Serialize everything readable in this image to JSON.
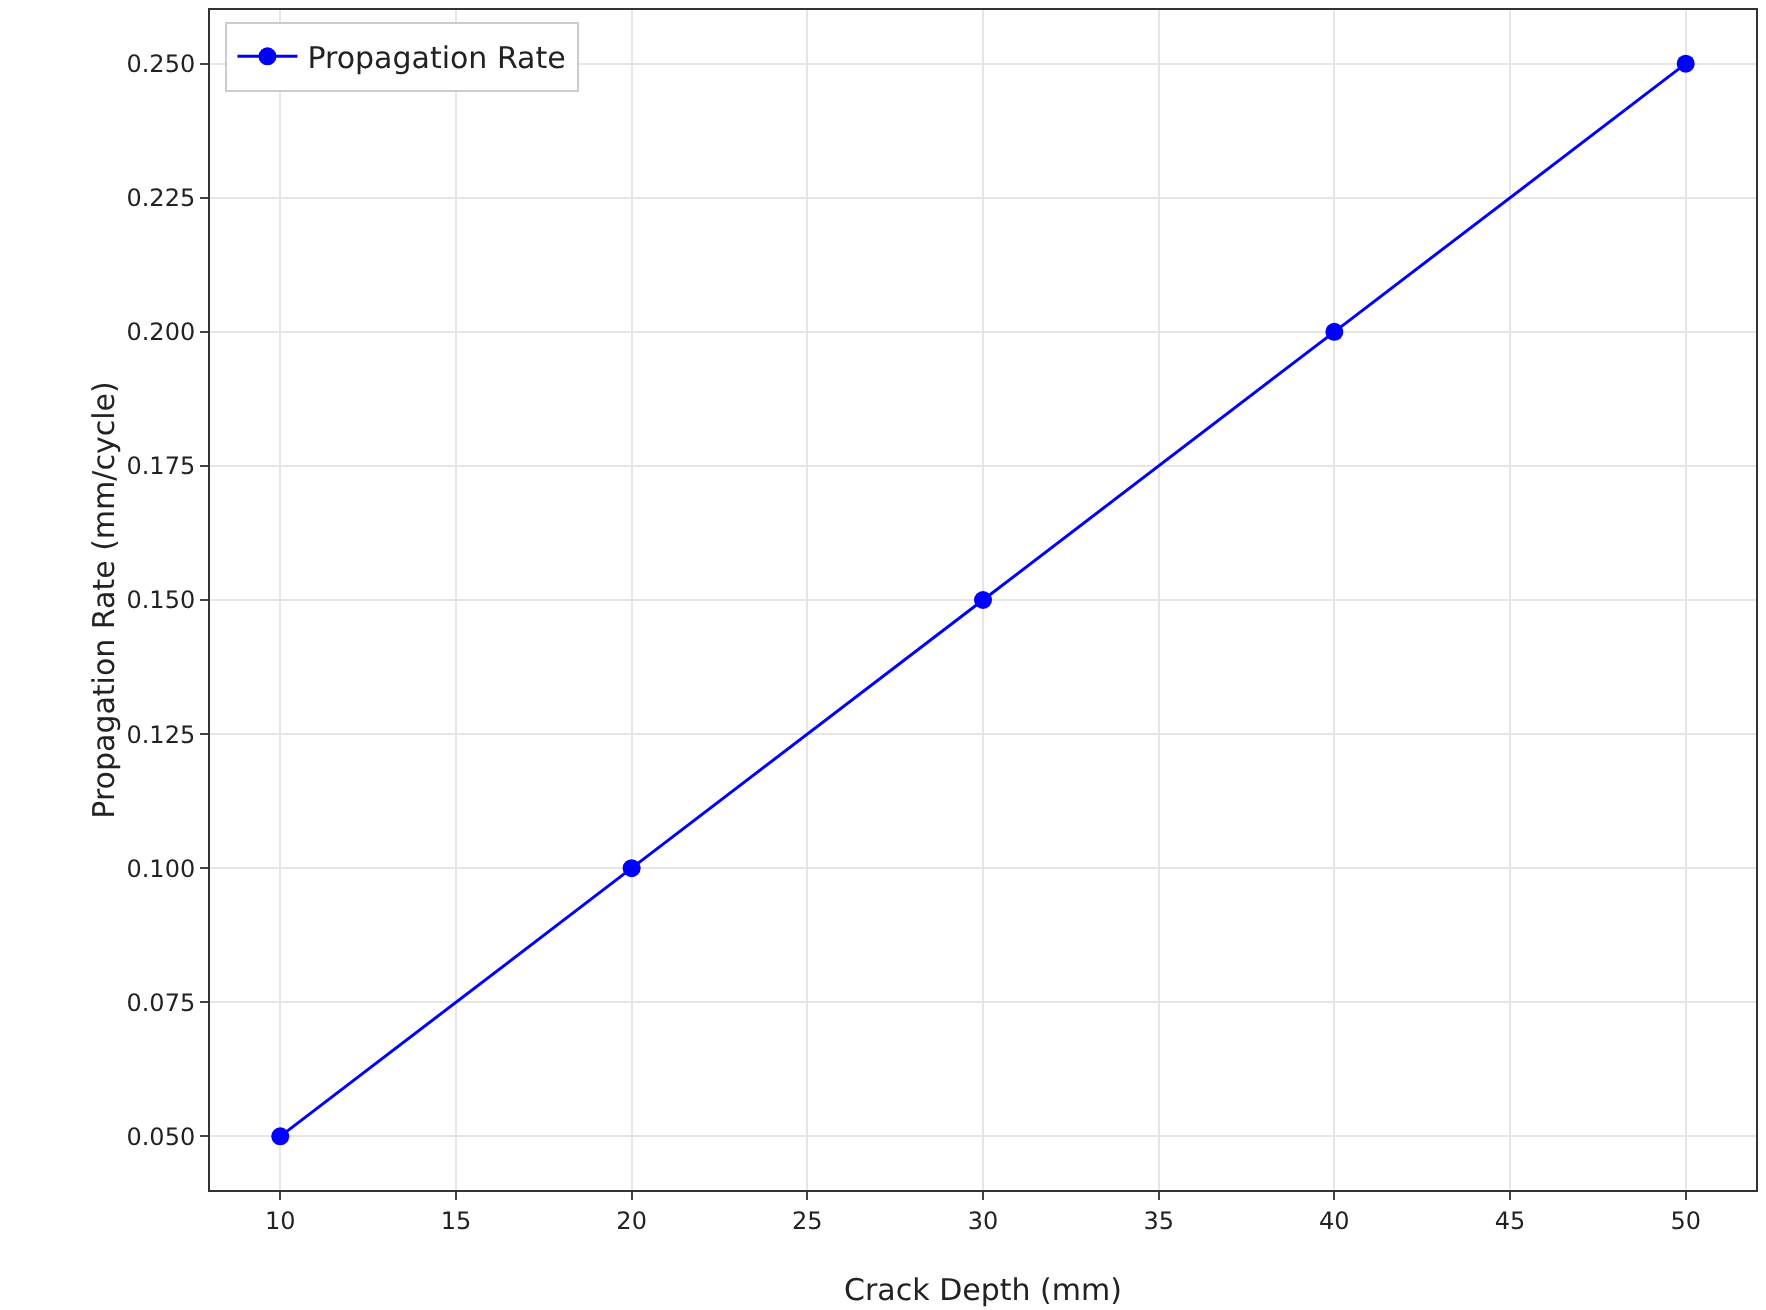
{
  "chart_data": {
    "type": "line",
    "xlabel": "Crack Depth (mm)",
    "ylabel": "Propagation Rate (mm/cycle)",
    "x": [
      10,
      20,
      30,
      40,
      50
    ],
    "series": [
      {
        "name": "Propagation Rate",
        "color": "#0000ff",
        "values": [
          0.05,
          0.1,
          0.15,
          0.2,
          0.25
        ]
      }
    ],
    "xlim": [
      8,
      52
    ],
    "xticks": [
      10,
      15,
      20,
      25,
      30,
      35,
      40,
      45,
      50
    ],
    "ylim": [
      0.04,
      0.26
    ],
    "yticks": [
      {
        "value": 0.05,
        "label": "0.050"
      },
      {
        "value": 0.075,
        "label": "0.075"
      },
      {
        "value": 0.1,
        "label": "0.100"
      },
      {
        "value": 0.125,
        "label": "0.125"
      },
      {
        "value": 0.15,
        "label": "0.150"
      },
      {
        "value": 0.175,
        "label": "0.175"
      },
      {
        "value": 0.2,
        "label": "0.200"
      },
      {
        "value": 0.225,
        "label": "0.225"
      },
      {
        "value": 0.25,
        "label": "0.250"
      }
    ],
    "grid": true,
    "legend": "top left",
    "marker": "circle",
    "line_style": "solid"
  }
}
